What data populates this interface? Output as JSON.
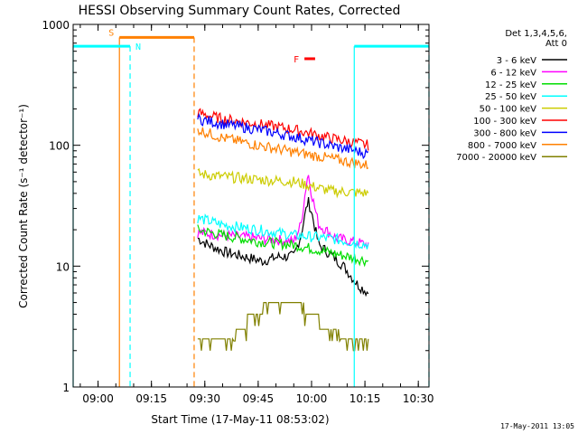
{
  "chart_data": {
    "type": "line",
    "title": "HESSI Observing Summary Count Rates, Corrected",
    "xlabel": "Start Time (17-May-11 08:53:02)",
    "ylabel": "Corrected Count Rate (s⁻¹ detector⁻¹)",
    "yscale": "log",
    "ylim": [
      1,
      1000
    ],
    "xlim": [
      "08:53",
      "10:33"
    ],
    "x_ticks": [
      "09:00",
      "09:15",
      "09:30",
      "09:45",
      "10:00",
      "10:15",
      "10:30"
    ],
    "y_ticks": [
      "1",
      "10",
      "100",
      "1000"
    ],
    "legend_title": "Det 1,3,4,5,6,",
    "legend_subtitle": "Att 0",
    "legend_position": "right",
    "timestamp": "17-May-2011 13:05",
    "series": [
      {
        "name": "3 - 6 keV",
        "color": "#000000",
        "x": [
          "09:28",
          "09:31",
          "09:36",
          "09:41",
          "09:46",
          "09:51",
          "09:55",
          "09:57",
          "09:59",
          "10:00",
          "10:02",
          "10:06",
          "10:09",
          "10:13",
          "10:16"
        ],
        "values": [
          17,
          15,
          13,
          12,
          11,
          12,
          12,
          18,
          35,
          28,
          15,
          12,
          10,
          7,
          6
        ]
      },
      {
        "name": "6 - 12 keV",
        "color": "#ff00ff",
        "x": [
          "09:28",
          "09:35",
          "09:45",
          "09:55",
          "09:57",
          "09:59",
          "10:00",
          "10:02",
          "10:07",
          "10:16"
        ],
        "values": [
          19,
          18,
          17,
          16,
          22,
          60,
          40,
          22,
          17,
          15
        ]
      },
      {
        "name": "12 - 25 keV",
        "color": "#00dd00",
        "x": [
          "09:28",
          "09:35",
          "09:45",
          "09:55",
          "10:05",
          "10:16"
        ],
        "values": [
          20,
          18,
          16,
          15,
          13,
          11
        ]
      },
      {
        "name": "25 - 50 keV",
        "color": "#00ffff",
        "x": [
          "09:28",
          "09:35",
          "09:45",
          "09:55",
          "10:05",
          "10:16"
        ],
        "values": [
          25,
          22,
          20,
          18,
          17,
          15
        ]
      },
      {
        "name": "50 - 100 keV",
        "color": "#cccc00",
        "x": [
          "09:28",
          "09:35",
          "09:45",
          "09:55",
          "10:05",
          "10:16"
        ],
        "values": [
          58,
          55,
          52,
          50,
          42,
          40
        ]
      },
      {
        "name": "100 - 300 keV",
        "color": "#ff0000",
        "x": [
          "09:28",
          "09:35",
          "09:45",
          "09:55",
          "10:05",
          "10:16"
        ],
        "values": [
          185,
          165,
          150,
          135,
          115,
          100
        ]
      },
      {
        "name": "300 - 800 keV",
        "color": "#0000ff",
        "x": [
          "09:28",
          "09:35",
          "09:45",
          "09:55",
          "10:05",
          "10:16"
        ],
        "values": [
          165,
          150,
          135,
          118,
          100,
          85
        ]
      },
      {
        "name": "800 - 7000 keV",
        "color": "#ff8000",
        "x": [
          "09:28",
          "09:35",
          "09:45",
          "09:55",
          "10:05",
          "10:16"
        ],
        "values": [
          135,
          115,
          100,
          88,
          78,
          68
        ]
      },
      {
        "name": "7000 - 20000 keV",
        "color": "#808000",
        "x": [
          "09:28",
          "09:35",
          "09:38",
          "09:42",
          "09:46",
          "09:50",
          "09:54",
          "09:58",
          "10:02",
          "10:08",
          "10:16"
        ],
        "values": [
          2.5,
          2.5,
          3,
          4,
          5,
          5,
          5,
          4,
          3,
          2.5,
          2.5
        ]
      }
    ],
    "annotations": [
      {
        "label": "S",
        "color": "#ff8000",
        "x_start": "09:06",
        "x_end": "09:27",
        "y": 780
      },
      {
        "label": "N",
        "color": "#00ffff",
        "x_start": "08:53",
        "x_end": "09:09",
        "y": 660
      },
      {
        "label": "N",
        "color": "#00ffff",
        "x_start": "10:12",
        "x_end": "10:33",
        "y": 660
      },
      {
        "label": "F",
        "color": "#ff0000",
        "x_start": "09:58",
        "x_end": "10:01",
        "y": 520
      }
    ]
  }
}
